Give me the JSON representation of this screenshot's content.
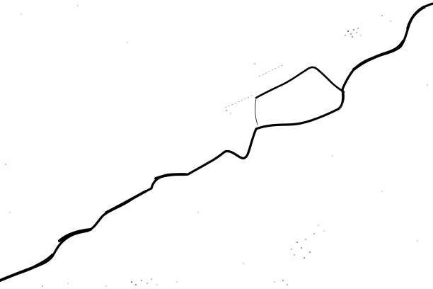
{
  "image": {
    "description_colors": {
      "background": "#ffffff",
      "crack": "#000000",
      "speckle": "#111111"
    }
  }
}
